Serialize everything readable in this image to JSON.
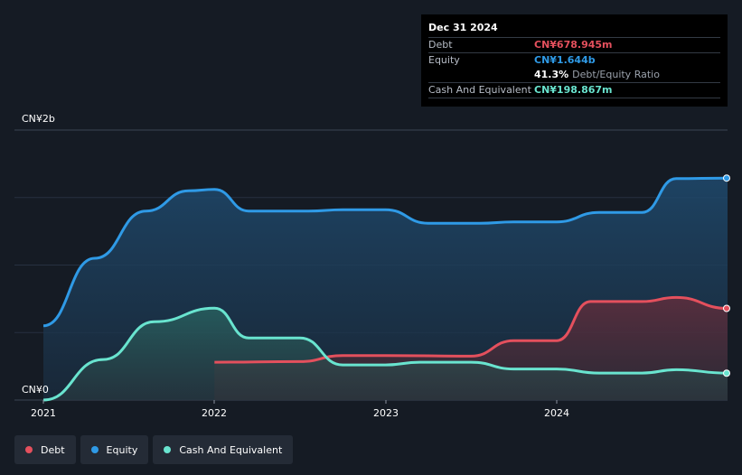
{
  "tooltip": {
    "date": "Dec 31 2024",
    "rows": [
      {
        "label": "Debt",
        "value": "CN¥678.945m",
        "color": "#e4505d"
      },
      {
        "label": "Equity",
        "value": "CN¥1.644b",
        "color": "#2f9ae6"
      },
      {
        "label": "",
        "value": "41.3%",
        "extra": "Debt/Equity Ratio",
        "color": "#ffffff"
      },
      {
        "label": "Cash And Equivalent",
        "value": "CN¥198.867m",
        "color": "#69e4cf"
      }
    ]
  },
  "legend": [
    {
      "label": "Debt",
      "color": "#e4505d"
    },
    {
      "label": "Equity",
      "color": "#2f9ae6"
    },
    {
      "label": "Cash And Equivalent",
      "color": "#69e4cf"
    }
  ],
  "chart_data": {
    "type": "area",
    "x_ticks": [
      "2021",
      "2022",
      "2023",
      "2024"
    ],
    "y_ticks": [
      "CN¥2b",
      "CN¥0"
    ],
    "ylim": [
      0,
      2.0
    ],
    "unit": "CN¥ billions",
    "grid": true,
    "series": [
      {
        "name": "Equity",
        "color": "#2f9ae6",
        "points": [
          [
            2021.0,
            0.55
          ],
          [
            2021.3,
            1.05
          ],
          [
            2021.6,
            1.4
          ],
          [
            2021.85,
            1.55
          ],
          [
            2022.0,
            1.56
          ],
          [
            2022.2,
            1.4
          ],
          [
            2022.55,
            1.4
          ],
          [
            2022.75,
            1.41
          ],
          [
            2023.0,
            1.41
          ],
          [
            2023.25,
            1.31
          ],
          [
            2023.55,
            1.31
          ],
          [
            2023.75,
            1.32
          ],
          [
            2024.0,
            1.32
          ],
          [
            2024.25,
            1.39
          ],
          [
            2024.5,
            1.39
          ],
          [
            2024.7,
            1.64
          ],
          [
            2025.0,
            1.644
          ]
        ]
      },
      {
        "name": "Debt",
        "color": "#e4505d",
        "points": [
          [
            2022.0,
            0.28
          ],
          [
            2022.5,
            0.285
          ],
          [
            2022.75,
            0.33
          ],
          [
            2023.0,
            0.33
          ],
          [
            2023.5,
            0.325
          ],
          [
            2023.75,
            0.44
          ],
          [
            2024.0,
            0.44
          ],
          [
            2024.2,
            0.73
          ],
          [
            2024.5,
            0.73
          ],
          [
            2024.7,
            0.76
          ],
          [
            2025.0,
            0.679
          ]
        ]
      },
      {
        "name": "Cash And Equivalent",
        "color": "#69e4cf",
        "points": [
          [
            2021.0,
            0.0
          ],
          [
            2021.35,
            0.3
          ],
          [
            2021.65,
            0.58
          ],
          [
            2022.0,
            0.68
          ],
          [
            2022.2,
            0.46
          ],
          [
            2022.5,
            0.46
          ],
          [
            2022.75,
            0.26
          ],
          [
            2023.0,
            0.26
          ],
          [
            2023.2,
            0.28
          ],
          [
            2023.5,
            0.28
          ],
          [
            2023.75,
            0.23
          ],
          [
            2024.0,
            0.23
          ],
          [
            2024.25,
            0.2
          ],
          [
            2024.5,
            0.2
          ],
          [
            2024.7,
            0.225
          ],
          [
            2025.0,
            0.199
          ]
        ]
      }
    ]
  }
}
